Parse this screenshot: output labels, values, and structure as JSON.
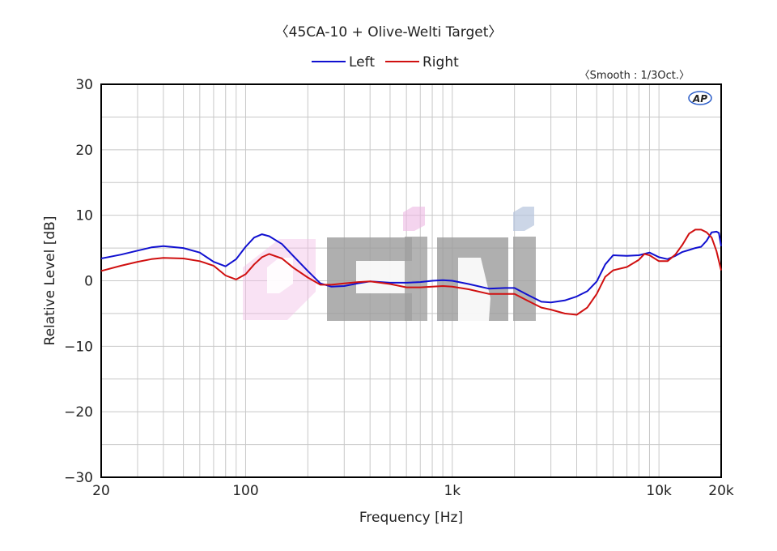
{
  "chart_data": {
    "type": "line",
    "title": "〈45CA-10 + Olive-Welti Target〉",
    "smoothing_note": "〈Smooth : 1/3Oct.〉",
    "brand_logo": "AP",
    "xlabel": "Frequency [Hz]",
    "ylabel": "Relative Level [dB]",
    "x_scale": "log",
    "xlim": [
      20,
      20000
    ],
    "ylim": [
      -30,
      30
    ],
    "x_ticks": [
      {
        "value": 20,
        "label": "20"
      },
      {
        "value": 100,
        "label": "100"
      },
      {
        "value": 1000,
        "label": "1k"
      },
      {
        "value": 10000,
        "label": "10k"
      },
      {
        "value": 20000,
        "label": "20k"
      }
    ],
    "y_ticks": [
      {
        "value": 30,
        "label": "30"
      },
      {
        "value": 20,
        "label": "20"
      },
      {
        "value": 10,
        "label": "10"
      },
      {
        "value": 0,
        "label": "0"
      },
      {
        "value": -10,
        "label": "−10"
      },
      {
        "value": -20,
        "label": "−20"
      },
      {
        "value": -30,
        "label": "−30"
      }
    ],
    "grid": true,
    "legend_position": "top-center",
    "series": [
      {
        "name": "Left",
        "color": "#1010d0",
        "points": [
          [
            20,
            3.4
          ],
          [
            25,
            4.0
          ],
          [
            30,
            4.6
          ],
          [
            35,
            5.1
          ],
          [
            40,
            5.3
          ],
          [
            50,
            5.0
          ],
          [
            60,
            4.3
          ],
          [
            70,
            2.9
          ],
          [
            80,
            2.2
          ],
          [
            90,
            3.3
          ],
          [
            100,
            5.2
          ],
          [
            110,
            6.6
          ],
          [
            120,
            7.1
          ],
          [
            130,
            6.8
          ],
          [
            150,
            5.6
          ],
          [
            170,
            3.8
          ],
          [
            200,
            1.5
          ],
          [
            230,
            -0.4
          ],
          [
            260,
            -0.9
          ],
          [
            300,
            -0.8
          ],
          [
            350,
            -0.4
          ],
          [
            400,
            -0.1
          ],
          [
            500,
            -0.3
          ],
          [
            600,
            -0.3
          ],
          [
            700,
            -0.2
          ],
          [
            800,
            0.0
          ],
          [
            900,
            0.1
          ],
          [
            1000,
            0.0
          ],
          [
            1200,
            -0.5
          ],
          [
            1500,
            -1.2
          ],
          [
            1800,
            -1.1
          ],
          [
            2000,
            -1.1
          ],
          [
            2300,
            -2.1
          ],
          [
            2700,
            -3.2
          ],
          [
            3000,
            -3.3
          ],
          [
            3500,
            -3.0
          ],
          [
            4000,
            -2.4
          ],
          [
            4500,
            -1.6
          ],
          [
            5000,
            -0.1
          ],
          [
            5500,
            2.5
          ],
          [
            6000,
            3.9
          ],
          [
            7000,
            3.8
          ],
          [
            8000,
            3.9
          ],
          [
            9000,
            4.3
          ],
          [
            10000,
            3.6
          ],
          [
            11000,
            3.3
          ],
          [
            12000,
            3.8
          ],
          [
            13000,
            4.4
          ],
          [
            14000,
            4.7
          ],
          [
            15000,
            5.0
          ],
          [
            16000,
            5.2
          ],
          [
            17000,
            6.1
          ],
          [
            18000,
            7.4
          ],
          [
            19000,
            7.5
          ],
          [
            19500,
            7.3
          ],
          [
            20000,
            5.3
          ]
        ]
      },
      {
        "name": "Right",
        "color": "#d01010",
        "points": [
          [
            20,
            1.5
          ],
          [
            25,
            2.3
          ],
          [
            30,
            2.9
          ],
          [
            35,
            3.3
          ],
          [
            40,
            3.5
          ],
          [
            50,
            3.4
          ],
          [
            60,
            3.0
          ],
          [
            70,
            2.3
          ],
          [
            80,
            0.8
          ],
          [
            90,
            0.2
          ],
          [
            100,
            1.0
          ],
          [
            110,
            2.5
          ],
          [
            120,
            3.6
          ],
          [
            130,
            4.1
          ],
          [
            150,
            3.4
          ],
          [
            170,
            2.0
          ],
          [
            200,
            0.5
          ],
          [
            230,
            -0.6
          ],
          [
            260,
            -0.6
          ],
          [
            300,
            -0.4
          ],
          [
            350,
            -0.2
          ],
          [
            400,
            -0.1
          ],
          [
            500,
            -0.5
          ],
          [
            600,
            -1.0
          ],
          [
            700,
            -1.0
          ],
          [
            800,
            -0.9
          ],
          [
            900,
            -0.8
          ],
          [
            1000,
            -0.9
          ],
          [
            1200,
            -1.3
          ],
          [
            1500,
            -2.0
          ],
          [
            1800,
            -2.0
          ],
          [
            2000,
            -2.0
          ],
          [
            2300,
            -3.0
          ],
          [
            2700,
            -4.1
          ],
          [
            3000,
            -4.4
          ],
          [
            3500,
            -5.0
          ],
          [
            4000,
            -5.2
          ],
          [
            4500,
            -4.1
          ],
          [
            5000,
            -2.0
          ],
          [
            5500,
            0.6
          ],
          [
            6000,
            1.6
          ],
          [
            7000,
            2.1
          ],
          [
            8000,
            3.2
          ],
          [
            8500,
            4.1
          ],
          [
            9000,
            3.9
          ],
          [
            10000,
            3.0
          ],
          [
            11000,
            3.0
          ],
          [
            12000,
            4.0
          ],
          [
            13000,
            5.5
          ],
          [
            14000,
            7.2
          ],
          [
            15000,
            7.8
          ],
          [
            16000,
            7.8
          ],
          [
            17000,
            7.4
          ],
          [
            18000,
            6.6
          ],
          [
            19000,
            4.5
          ],
          [
            20000,
            1.6
          ]
        ]
      }
    ]
  }
}
